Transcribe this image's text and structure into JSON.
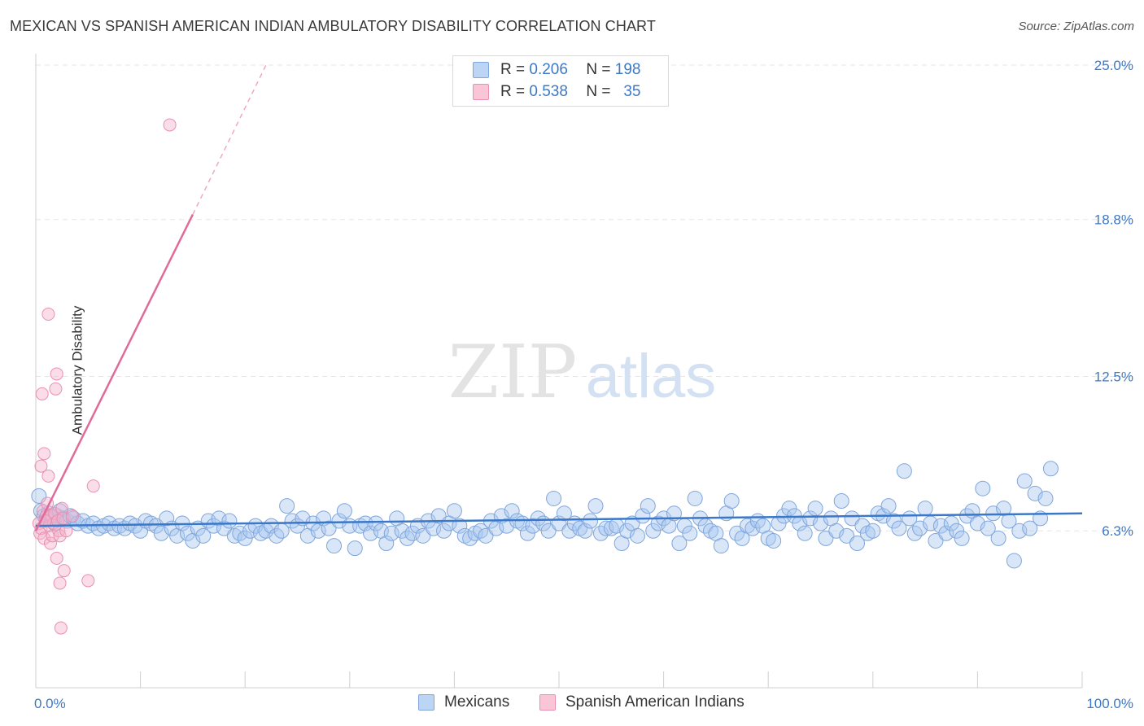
{
  "title": "MEXICAN VS SPANISH AMERICAN INDIAN AMBULATORY DISABILITY CORRELATION CHART",
  "source": "Source: ZipAtlas.com",
  "watermark": {
    "zip": "ZIP",
    "atlas": "atlas"
  },
  "colors": {
    "blue": "#3c78c8",
    "blue_fill": "#a9c8f0",
    "pink": "#e06a98",
    "pink_fill": "#f5b4cb"
  },
  "legend_top": [
    {
      "r_label": "R =",
      "r_value": "0.206",
      "n_label": "N =",
      "n_value": "198"
    },
    {
      "r_label": "R =",
      "r_value": "0.538",
      "n_label": "N =",
      "n_value": "35"
    }
  ],
  "legend_bottom": [
    "Mexicans",
    "Spanish American Indians"
  ],
  "chart_data": {
    "type": "scatter",
    "xlabel": "",
    "ylabel": "Ambulatory Disability",
    "xlim": [
      0,
      100
    ],
    "ylim": [
      0,
      25
    ],
    "x_tick_labels": [
      "0.0%",
      "100.0%"
    ],
    "y_ticks": [
      6.3,
      12.5,
      18.8,
      25.0
    ],
    "y_tick_labels": [
      "6.3%",
      "12.5%",
      "18.8%",
      "25.0%"
    ],
    "grid": "horizontal dashed",
    "legend_placement": "top-center",
    "series": [
      {
        "name": "Mexicans",
        "trend": {
          "x0": 0,
          "y0": 6.5,
          "x1": 100,
          "y1": 7.0
        },
        "points": [
          [
            0.3,
            7.7
          ],
          [
            0.5,
            7.1
          ],
          [
            0.8,
            6.9
          ],
          [
            1,
            6.8
          ],
          [
            1.2,
            7.0
          ],
          [
            1.5,
            6.9
          ],
          [
            1.8,
            6.6
          ],
          [
            2,
            6.9
          ],
          [
            2.3,
            7.1
          ],
          [
            2.6,
            6.8
          ],
          [
            3,
            6.7
          ],
          [
            3.3,
            6.9
          ],
          [
            3.6,
            6.8
          ],
          [
            4,
            6.6
          ],
          [
            4.5,
            6.7
          ],
          [
            5,
            6.5
          ],
          [
            5.5,
            6.6
          ],
          [
            6,
            6.4
          ],
          [
            6.5,
            6.5
          ],
          [
            7,
            6.6
          ],
          [
            7.5,
            6.4
          ],
          [
            8,
            6.5
          ],
          [
            8.5,
            6.4
          ],
          [
            9,
            6.6
          ],
          [
            9.5,
            6.5
          ],
          [
            10,
            6.3
          ],
          [
            10.5,
            6.7
          ],
          [
            11,
            6.6
          ],
          [
            11.5,
            6.5
          ],
          [
            12,
            6.2
          ],
          [
            12.5,
            6.8
          ],
          [
            13,
            6.4
          ],
          [
            13.5,
            6.1
          ],
          [
            14,
            6.6
          ],
          [
            14.5,
            6.2
          ],
          [
            15,
            5.9
          ],
          [
            15.5,
            6.4
          ],
          [
            16,
            6.1
          ],
          [
            16.5,
            6.7
          ],
          [
            17,
            6.5
          ],
          [
            17.5,
            6.8
          ],
          [
            18,
            6.4
          ],
          [
            18.5,
            6.7
          ],
          [
            19,
            6.1
          ],
          [
            19.5,
            6.2
          ],
          [
            20,
            6.0
          ],
          [
            20.5,
            6.3
          ],
          [
            21,
            6.5
          ],
          [
            21.5,
            6.2
          ],
          [
            22,
            6.3
          ],
          [
            22.5,
            6.5
          ],
          [
            23,
            6.1
          ],
          [
            23.5,
            6.3
          ],
          [
            24,
            7.3
          ],
          [
            24.5,
            6.7
          ],
          [
            25,
            6.5
          ],
          [
            25.5,
            6.8
          ],
          [
            26,
            6.1
          ],
          [
            26.5,
            6.6
          ],
          [
            27,
            6.3
          ],
          [
            27.5,
            6.8
          ],
          [
            28,
            6.4
          ],
          [
            28.5,
            5.7
          ],
          [
            29,
            6.7
          ],
          [
            29.5,
            7.1
          ],
          [
            30,
            6.5
          ],
          [
            30.5,
            5.6
          ],
          [
            31,
            6.5
          ],
          [
            31.5,
            6.6
          ],
          [
            32,
            6.2
          ],
          [
            32.5,
            6.6
          ],
          [
            33,
            6.3
          ],
          [
            33.5,
            5.8
          ],
          [
            34,
            6.2
          ],
          [
            34.5,
            6.8
          ],
          [
            35,
            6.3
          ],
          [
            35.5,
            6.0
          ],
          [
            36,
            6.2
          ],
          [
            36.5,
            6.5
          ],
          [
            37,
            6.1
          ],
          [
            37.5,
            6.7
          ],
          [
            38,
            6.4
          ],
          [
            38.5,
            6.9
          ],
          [
            39,
            6.3
          ],
          [
            39.5,
            6.6
          ],
          [
            40,
            7.1
          ],
          [
            40.5,
            6.5
          ],
          [
            41,
            6.1
          ],
          [
            41.5,
            6.0
          ],
          [
            42,
            6.2
          ],
          [
            42.5,
            6.3
          ],
          [
            43,
            6.1
          ],
          [
            43.5,
            6.7
          ],
          [
            44,
            6.4
          ],
          [
            44.5,
            6.9
          ],
          [
            45,
            6.5
          ],
          [
            45.5,
            7.1
          ],
          [
            46,
            6.7
          ],
          [
            46.5,
            6.6
          ],
          [
            47,
            6.2
          ],
          [
            47.5,
            6.5
          ],
          [
            48,
            6.8
          ],
          [
            48.5,
            6.6
          ],
          [
            49,
            6.3
          ],
          [
            49.5,
            7.6
          ],
          [
            50,
            6.6
          ],
          [
            50.5,
            7.0
          ],
          [
            51,
            6.3
          ],
          [
            51.5,
            6.6
          ],
          [
            52,
            6.4
          ],
          [
            52.5,
            6.3
          ],
          [
            53,
            6.7
          ],
          [
            53.5,
            7.3
          ],
          [
            54,
            6.2
          ],
          [
            54.5,
            6.4
          ],
          [
            55,
            6.4
          ],
          [
            55.5,
            6.5
          ],
          [
            56,
            5.8
          ],
          [
            56.5,
            6.3
          ],
          [
            57,
            6.6
          ],
          [
            57.5,
            6.1
          ],
          [
            58,
            6.9
          ],
          [
            58.5,
            7.3
          ],
          [
            59,
            6.3
          ],
          [
            59.5,
            6.6
          ],
          [
            60,
            6.8
          ],
          [
            60.5,
            6.5
          ],
          [
            61,
            7.0
          ],
          [
            61.5,
            5.8
          ],
          [
            62,
            6.5
          ],
          [
            62.5,
            6.2
          ],
          [
            63,
            7.6
          ],
          [
            63.5,
            6.8
          ],
          [
            64,
            6.5
          ],
          [
            64.5,
            6.3
          ],
          [
            65,
            6.2
          ],
          [
            65.5,
            5.7
          ],
          [
            66,
            7.0
          ],
          [
            66.5,
            7.5
          ],
          [
            67,
            6.2
          ],
          [
            67.5,
            6.0
          ],
          [
            68,
            6.5
          ],
          [
            68.5,
            6.4
          ],
          [
            69,
            6.7
          ],
          [
            69.5,
            6.5
          ],
          [
            70,
            6.0
          ],
          [
            70.5,
            5.9
          ],
          [
            71,
            6.6
          ],
          [
            71.5,
            6.9
          ],
          [
            72,
            7.2
          ],
          [
            72.5,
            6.9
          ],
          [
            73,
            6.6
          ],
          [
            73.5,
            6.2
          ],
          [
            74,
            6.8
          ],
          [
            74.5,
            7.2
          ],
          [
            75,
            6.6
          ],
          [
            75.5,
            6.0
          ],
          [
            76,
            6.8
          ],
          [
            76.5,
            6.3
          ],
          [
            77,
            7.5
          ],
          [
            77.5,
            6.1
          ],
          [
            78,
            6.8
          ],
          [
            78.5,
            5.8
          ],
          [
            79,
            6.5
          ],
          [
            79.5,
            6.2
          ],
          [
            80,
            6.3
          ],
          [
            80.5,
            7.0
          ],
          [
            81,
            6.9
          ],
          [
            81.5,
            7.3
          ],
          [
            82,
            6.7
          ],
          [
            82.5,
            6.4
          ],
          [
            83,
            8.7
          ],
          [
            83.5,
            6.8
          ],
          [
            84,
            6.2
          ],
          [
            84.5,
            6.4
          ],
          [
            85,
            7.2
          ],
          [
            85.5,
            6.6
          ],
          [
            86,
            5.9
          ],
          [
            86.5,
            6.5
          ],
          [
            87,
            6.2
          ],
          [
            87.5,
            6.6
          ],
          [
            88,
            6.3
          ],
          [
            88.5,
            6.0
          ],
          [
            89,
            6.9
          ],
          [
            89.5,
            7.1
          ],
          [
            90,
            6.6
          ],
          [
            90.5,
            8.0
          ],
          [
            91,
            6.4
          ],
          [
            91.5,
            7.0
          ],
          [
            92,
            6.0
          ],
          [
            92.5,
            7.2
          ],
          [
            93,
            6.7
          ],
          [
            93.5,
            5.1
          ],
          [
            94,
            6.3
          ],
          [
            94.5,
            8.3
          ],
          [
            95,
            6.4
          ],
          [
            95.5,
            7.8
          ],
          [
            96,
            6.8
          ],
          [
            96.5,
            7.6
          ],
          [
            97,
            8.8
          ]
        ]
      },
      {
        "name": "Spanish American Indians",
        "trend": {
          "x0": 0,
          "y0": 6.3,
          "x1": 15,
          "y1": 19.0
        },
        "trend_dashed": {
          "x0": 15,
          "y0": 19.0,
          "x1": 22,
          "y1": 25.0
        },
        "points": [
          [
            0.3,
            6.6
          ],
          [
            0.4,
            6.2
          ],
          [
            0.5,
            6.4
          ],
          [
            0.5,
            8.9
          ],
          [
            0.6,
            11.8
          ],
          [
            0.7,
            7.1
          ],
          [
            0.8,
            6.0
          ],
          [
            0.8,
            9.4
          ],
          [
            1,
            6.9
          ],
          [
            1.1,
            7.4
          ],
          [
            1.2,
            8.5
          ],
          [
            1.2,
            15.0
          ],
          [
            1.3,
            6.5
          ],
          [
            1.4,
            5.8
          ],
          [
            1.5,
            6.9
          ],
          [
            1.6,
            6.1
          ],
          [
            1.7,
            6.6
          ],
          [
            1.8,
            7.0
          ],
          [
            1.9,
            12.0
          ],
          [
            2,
            5.2
          ],
          [
            2,
            12.6
          ],
          [
            2.1,
            6.7
          ],
          [
            2.2,
            6.3
          ],
          [
            2.3,
            6.1
          ],
          [
            2.3,
            4.2
          ],
          [
            2.4,
            2.4
          ],
          [
            2.5,
            7.2
          ],
          [
            2.6,
            6.8
          ],
          [
            2.7,
            4.7
          ],
          [
            2.9,
            6.3
          ],
          [
            3.5,
            6.9
          ],
          [
            5,
            4.3
          ],
          [
            5.5,
            8.1
          ],
          [
            12.8,
            22.6
          ],
          [
            0.9,
            6.7
          ]
        ]
      }
    ]
  }
}
